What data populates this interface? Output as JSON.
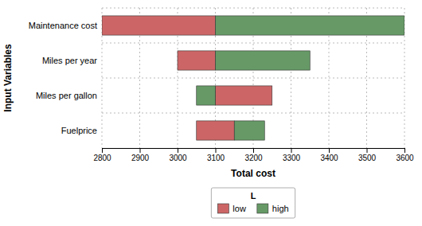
{
  "chart_data": {
    "type": "bar",
    "orientation": "horizontal",
    "categories": [
      "Maintenance cost",
      "Miles per year",
      "Miles per gallon",
      "Fuelprice"
    ],
    "series": [
      {
        "name": "low",
        "color": "#cc6666",
        "values": [
          [
            2800,
            3100
          ],
          [
            3000,
            3100
          ],
          [
            3100,
            3250
          ],
          [
            3050,
            3150
          ]
        ]
      },
      {
        "name": "high",
        "color": "#669966",
        "values": [
          [
            3100,
            3600
          ],
          [
            3100,
            3350
          ],
          [
            3050,
            3100
          ],
          [
            3150,
            3230
          ]
        ]
      }
    ],
    "xlim": [
      2800,
      3600
    ],
    "xticks": [
      2800,
      2900,
      3000,
      3100,
      3200,
      3300,
      3400,
      3500,
      3600
    ],
    "xlabel": "Total cost",
    "ylabel": "Input Variables",
    "legend_title": "L",
    "legend": "bottom",
    "grid": true
  }
}
